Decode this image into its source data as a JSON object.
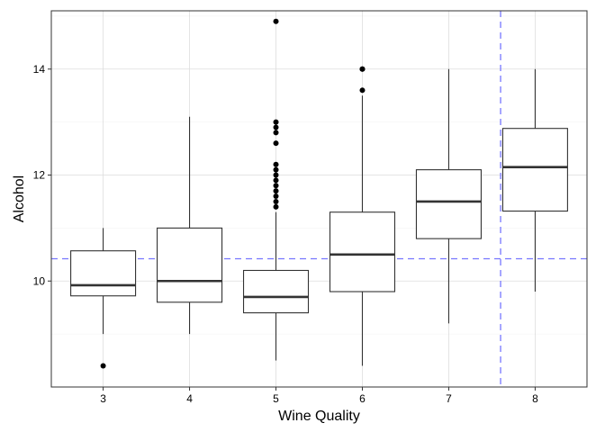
{
  "chart_data": {
    "type": "boxplot",
    "xlabel": "Wine Quality",
    "ylabel": "Alcohol",
    "ylim": [
      8.0,
      15.1
    ],
    "y_ticks": [
      10,
      12,
      14
    ],
    "grid": true,
    "categories": [
      "3",
      "4",
      "5",
      "6",
      "7",
      "8"
    ],
    "boxes": [
      {
        "category": "3",
        "whisker_low": 9.0,
        "q1": 9.72,
        "median": 9.92,
        "q3": 10.57,
        "whisker_high": 11.0,
        "outliers": [
          8.4
        ]
      },
      {
        "category": "4",
        "whisker_low": 9.0,
        "q1": 9.6,
        "median": 10.0,
        "q3": 11.0,
        "whisker_high": 13.1,
        "outliers": []
      },
      {
        "category": "5",
        "whisker_low": 8.5,
        "q1": 9.4,
        "median": 9.7,
        "q3": 10.2,
        "whisker_high": 11.3,
        "outliers": [
          11.4,
          11.5,
          11.6,
          11.7,
          11.8,
          11.9,
          12.0,
          12.1,
          12.2,
          12.6,
          12.8,
          12.9,
          13.0,
          14.9
        ]
      },
      {
        "category": "6",
        "whisker_low": 8.4,
        "q1": 9.8,
        "median": 10.5,
        "q3": 11.3,
        "whisker_high": 13.5,
        "outliers": [
          13.6,
          14.0,
          14.0
        ]
      },
      {
        "category": "7",
        "whisker_low": 9.2,
        "q1": 10.8,
        "median": 11.5,
        "q3": 12.1,
        "whisker_high": 14.0,
        "outliers": []
      },
      {
        "category": "8",
        "whisker_low": 9.8,
        "q1": 11.32,
        "median": 12.15,
        "q3": 12.88,
        "whisker_high": 14.0,
        "outliers": []
      }
    ],
    "reference_lines": [
      {
        "orientation": "horizontal",
        "y": 10.42,
        "color": "#7777ff",
        "style": "dashed"
      },
      {
        "orientation": "vertical",
        "x": 5.6,
        "color": "#7777ff",
        "style": "dashed"
      }
    ],
    "colors": {
      "box_fill": "#ffffff",
      "box_stroke": "#333333",
      "outlier": "#000000",
      "grid": "#dddddd",
      "panel_border": "#333333"
    }
  }
}
